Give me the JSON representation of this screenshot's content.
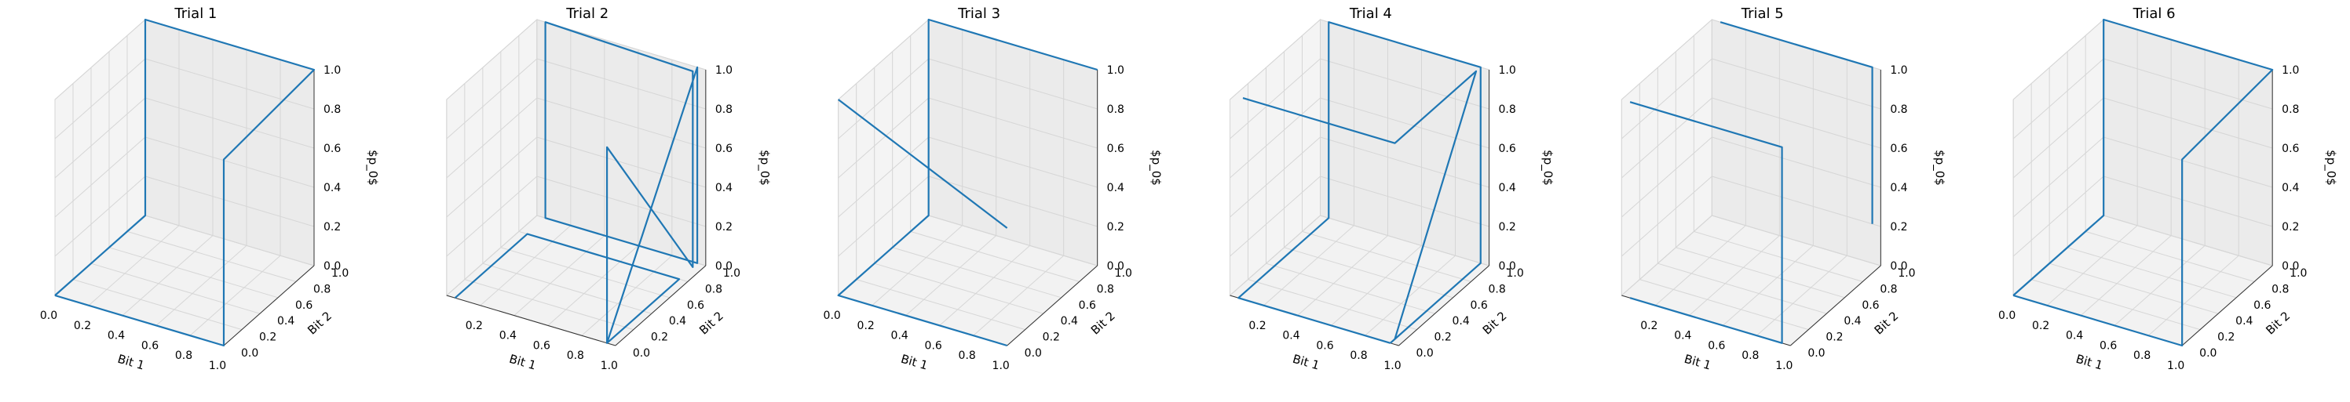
{
  "chart_data": [
    {
      "type": "line3d",
      "title": "Trial 1",
      "xlabel": "Bit 1",
      "ylabel": "Bit 2",
      "zlabel": "$p_0$",
      "xlim": [
        0,
        1
      ],
      "ylim": [
        0,
        1
      ],
      "zlim": [
        0,
        1
      ],
      "xticks": [
        "0.0",
        "0.2",
        "0.4",
        "0.6",
        "0.8",
        "1.0"
      ],
      "yticks": [
        "0.0",
        "0.2",
        "0.4",
        "0.6",
        "0.8",
        "1.0"
      ],
      "zticks": [
        "0.0",
        "0.2",
        "0.4",
        "0.6",
        "0.8",
        "1.0"
      ],
      "grid": true,
      "series": [
        {
          "color": "#1f77b4",
          "x": [
            0,
            0,
            0,
            0,
            1,
            1,
            1,
            0
          ],
          "y": [
            0,
            1,
            1,
            1,
            1,
            0,
            0,
            0
          ],
          "z": [
            0,
            0,
            0.7,
            1,
            1,
            0.95,
            0,
            0
          ]
        }
      ]
    },
    {
      "type": "line3d",
      "title": "Trial 2",
      "xlabel": "Bit 1",
      "ylabel": "Bit 2",
      "zlabel": "$p_0$",
      "xlim": [
        0,
        1
      ],
      "ylim": [
        0,
        1
      ],
      "zlim": [
        0,
        1
      ],
      "xticks": [
        "0.2",
        "0.4",
        "0.6",
        "0.8",
        "1.0"
      ],
      "yticks": [
        "0.0",
        "0.2",
        "0.4",
        "0.6",
        "0.8",
        "1.0"
      ],
      "zticks": [
        "0.0",
        "0.2",
        "0.4",
        "0.6",
        "0.8",
        "1.0"
      ],
      "grid": true,
      "series": [
        {
          "color": "#1f77b4",
          "x": [
            0.05,
            0.05,
            0.95,
            0.95,
            0.95,
            0.95,
            0.95,
            0.05,
            0.05,
            0.95,
            0.95,
            0.95
          ],
          "y": [
            0,
            0.8,
            0.8,
            0,
            0,
            0.95,
            0.95,
            1,
            1,
            1,
            1,
            0
          ],
          "z": [
            0,
            0,
            0,
            0,
            1,
            0,
            1,
            1,
            0,
            0,
            1,
            0
          ]
        }
      ]
    },
    {
      "type": "line3d",
      "title": "Trial 3",
      "xlabel": "Bit 1",
      "ylabel": "Bit 2",
      "zlabel": "$p_0$",
      "xlim": [
        0,
        1
      ],
      "ylim": [
        0,
        1
      ],
      "zlim": [
        0,
        1
      ],
      "xticks": [
        "0.0",
        "0.2",
        "0.4",
        "0.6",
        "0.8",
        "1.0"
      ],
      "yticks": [
        "0.0",
        "0.2",
        "0.4",
        "0.6",
        "0.8",
        "1.0"
      ],
      "zticks": [
        "0.0",
        "0.2",
        "0.4",
        "0.6",
        "0.8",
        "1.0"
      ],
      "grid": true,
      "series": [
        {
          "color": "#1f77b4",
          "x": [
            1,
            0,
            0,
            0,
            0,
            1
          ],
          "y": [
            0,
            0,
            1,
            1,
            1,
            1
          ],
          "z": [
            0,
            0,
            0,
            1,
            1,
            1
          ]
        },
        {
          "color": "#1f77b4",
          "x": [
            0,
            1
          ],
          "y": [
            0,
            0
          ],
          "z": [
            1,
            0.6
          ]
        }
      ]
    },
    {
      "type": "line3d",
      "title": "Trial 4",
      "xlabel": "Bit 1",
      "ylabel": "Bit 2",
      "zlabel": "$p_0$",
      "xlim": [
        0,
        1
      ],
      "ylim": [
        0,
        1
      ],
      "zlim": [
        0,
        1
      ],
      "xticks": [
        "0.2",
        "0.4",
        "0.6",
        "0.8",
        "1.0"
      ],
      "yticks": [
        "0.0",
        "0.2",
        "0.4",
        "0.6",
        "0.8",
        "1.0"
      ],
      "zticks": [
        "0.0",
        "0.2",
        "0.4",
        "0.6",
        "0.8",
        "1.0"
      ],
      "grid": true,
      "series": [
        {
          "color": "#1f77b4",
          "x": [
            0.95,
            0.05,
            0.05,
            0.05,
            0.95,
            0.95,
            0.95
          ],
          "y": [
            0,
            0,
            1,
            1,
            1,
            1,
            0
          ],
          "z": [
            0,
            0,
            0,
            1,
            1,
            0,
            0
          ]
        },
        {
          "color": "#1f77b4",
          "x": [
            0.05,
            0.95,
            0.95,
            0.95
          ],
          "y": [
            0.05,
            0.05,
            0.95,
            0.05
          ],
          "z": [
            1,
            1,
            1,
            0
          ]
        }
      ]
    },
    {
      "type": "line3d",
      "title": "Trial 5",
      "xlabel": "Bit 1",
      "ylabel": "Bit 2",
      "zlabel": "$p_0$",
      "xlim": [
        0,
        1
      ],
      "ylim": [
        0,
        1
      ],
      "zlim": [
        0,
        1
      ],
      "xticks": [
        "0.2",
        "0.4",
        "0.6",
        "0.8",
        "1.0"
      ],
      "yticks": [
        "0.0",
        "0.2",
        "0.4",
        "0.6",
        "0.8",
        "1.0"
      ],
      "zticks": [
        "0.0",
        "0.2",
        "0.4",
        "0.6",
        "0.8",
        "1.0"
      ],
      "grid": true,
      "series": [
        {
          "color": "#1f77b4",
          "x": [
            0.05,
            0.95,
            0.95,
            0.95,
            0.05
          ],
          "y": [
            0,
            0,
            0,
            0,
            0
          ],
          "z": [
            0,
            0,
            1,
            1,
            1
          ]
        },
        {
          "color": "#1f77b4",
          "x": [
            0.05,
            0.95,
            0.95,
            0.95
          ],
          "y": [
            1,
            1,
            1,
            1
          ],
          "z": [
            1,
            1,
            1,
            0.2
          ]
        }
      ]
    },
    {
      "type": "line3d",
      "title": "Trial 6",
      "xlabel": "Bit 1",
      "ylabel": "Bit 2",
      "zlabel": "$p_0$",
      "xlim": [
        0,
        1
      ],
      "ylim": [
        0,
        1
      ],
      "zlim": [
        0,
        1
      ],
      "xticks": [
        "0.0",
        "0.2",
        "0.4",
        "0.6",
        "0.8",
        "1.0"
      ],
      "yticks": [
        "0.0",
        "0.2",
        "0.4",
        "0.6",
        "0.8",
        "1.0"
      ],
      "zticks": [
        "0.0",
        "0.2",
        "0.4",
        "0.6",
        "0.8",
        "1.0"
      ],
      "grid": true,
      "series": [
        {
          "color": "#1f77b4",
          "x": [
            0,
            0,
            0,
            0,
            1,
            1,
            1,
            0
          ],
          "y": [
            0,
            1,
            1,
            1,
            1,
            0,
            0,
            0
          ],
          "z": [
            0,
            0,
            0.7,
            1,
            1,
            0.95,
            0,
            0
          ]
        }
      ]
    }
  ]
}
